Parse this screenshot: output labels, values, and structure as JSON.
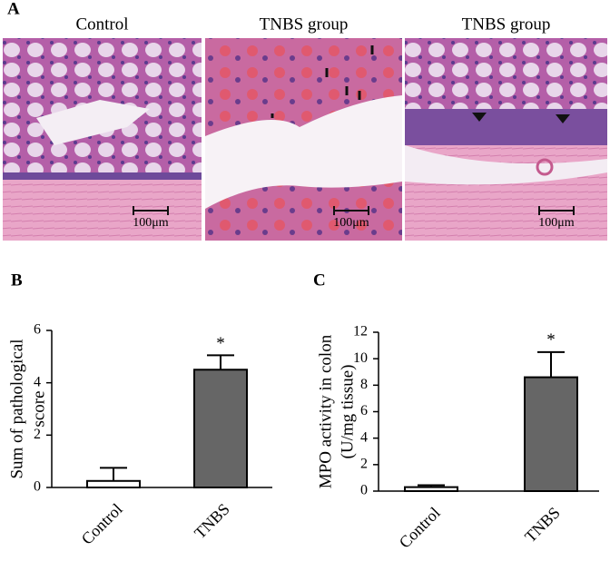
{
  "panel_labels": [
    "A",
    "B",
    "C"
  ],
  "images": [
    {
      "title": "Control",
      "scale": "100μm"
    },
    {
      "title": "TNBS group",
      "scale": "100μm"
    },
    {
      "title": "TNBS group",
      "scale": "100μm"
    }
  ],
  "chart_data": [
    {
      "type": "bar",
      "ylabel": [
        "Sum of pathological",
        "score"
      ],
      "categories": [
        "Control",
        "TNBS"
      ],
      "values": [
        0.25,
        4.5
      ],
      "errors": [
        0.5,
        0.55
      ],
      "colors": [
        "#ffffff",
        "#666666"
      ],
      "annotation": "*",
      "ylim": [
        0,
        6
      ],
      "yticks": [
        0,
        2,
        4,
        6
      ]
    },
    {
      "type": "bar",
      "ylabel": [
        "MPO activity in colon",
        "(U/mg tissue)"
      ],
      "categories": [
        "Control",
        "TNBS"
      ],
      "values": [
        0.3,
        8.6
      ],
      "errors": [
        0.15,
        1.9
      ],
      "colors": [
        "#ffffff",
        "#666666"
      ],
      "annotation": "*",
      "ylim": [
        0,
        12
      ],
      "yticks": [
        0,
        2,
        4,
        6,
        8,
        10,
        12
      ]
    }
  ]
}
